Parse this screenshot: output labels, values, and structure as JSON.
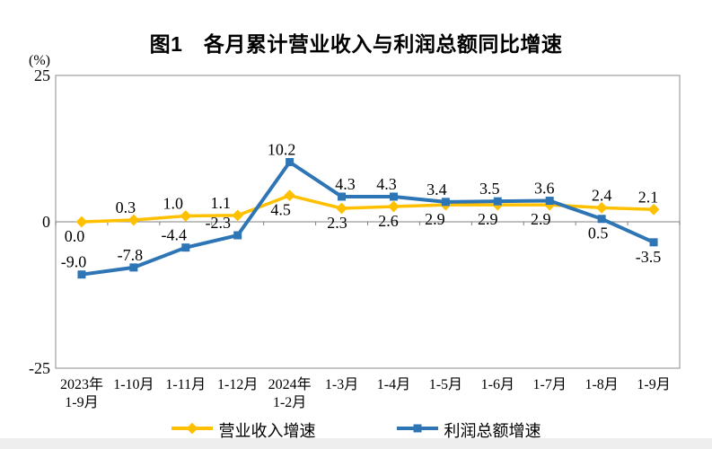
{
  "page": {
    "background": "#ffffff",
    "footer_strip_color": "#eeeeee"
  },
  "chart_data": {
    "type": "line",
    "title": "图1　各月累计营业收入与利润总额同比增速",
    "unit_label": "(%)",
    "categories": [
      [
        "2023年",
        "1-9月"
      ],
      [
        "1-10月"
      ],
      [
        "1-11月"
      ],
      [
        "1-12月"
      ],
      [
        "2024年",
        "1-2月"
      ],
      [
        "1-3月"
      ],
      [
        "1-4月"
      ],
      [
        "1-5月"
      ],
      [
        "1-6月"
      ],
      [
        "1-7月"
      ],
      [
        "1-8月"
      ],
      [
        "1-9月"
      ]
    ],
    "series": [
      {
        "id": "revenue-growth",
        "name": "营业收入增速",
        "color": "#FFC000",
        "marker": "diamond",
        "values": [
          0.0,
          0.3,
          1.0,
          1.1,
          4.5,
          2.3,
          2.6,
          2.9,
          2.9,
          2.9,
          2.4,
          2.1
        ],
        "label_positions": [
          "below",
          "above",
          "above",
          "above",
          "below",
          "below",
          "below",
          "below",
          "below",
          "below",
          "above",
          "above"
        ],
        "label_dx": [
          -8,
          -9,
          -14,
          -19,
          -10,
          -5,
          -6,
          -12,
          -11,
          -10,
          0,
          -6
        ]
      },
      {
        "id": "profit-growth",
        "name": "利润总额增速",
        "color": "#2E75B6",
        "marker": "square",
        "values": [
          -9.0,
          -7.8,
          -4.4,
          -2.3,
          10.2,
          4.3,
          4.3,
          3.4,
          3.5,
          3.6,
          0.5,
          -3.5
        ],
        "label_positions": [
          "above",
          "above",
          "above",
          "above",
          "above",
          "above",
          "above",
          "above",
          "above",
          "above",
          "below",
          "below"
        ],
        "label_dx": [
          -9,
          -4,
          -13,
          -22,
          -9,
          4,
          -8,
          -10,
          -9,
          -6,
          -4,
          -6
        ]
      }
    ],
    "ylim": [
      -25,
      25
    ],
    "yticks": [
      25,
      0,
      -25
    ],
    "grid": false,
    "legend_position": "bottom",
    "axis_color": "#a6a6a6",
    "zero_line_color": "#808080",
    "label_color": "#000000"
  }
}
